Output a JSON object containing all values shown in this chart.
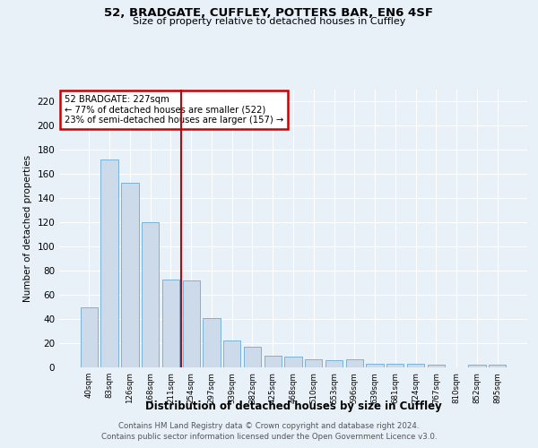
{
  "title1": "52, BRADGATE, CUFFLEY, POTTERS BAR, EN6 4SF",
  "title2": "Size of property relative to detached houses in Cuffley",
  "xlabel": "Distribution of detached houses by size in Cuffley",
  "ylabel": "Number of detached properties",
  "footer1": "Contains HM Land Registry data © Crown copyright and database right 2024.",
  "footer2": "Contains public sector information licensed under the Open Government Licence v3.0.",
  "annotation_line1": "52 BRADGATE: 227sqm",
  "annotation_line2": "← 77% of detached houses are smaller (522)",
  "annotation_line3": "23% of semi-detached houses are larger (157) →",
  "bar_color": "#ccdaea",
  "bar_edge_color": "#6aaad4",
  "vline_color": "#cc0000",
  "vline_index": 4.5,
  "categories": [
    "40sqm",
    "83sqm",
    "126sqm",
    "168sqm",
    "211sqm",
    "254sqm",
    "297sqm",
    "339sqm",
    "382sqm",
    "425sqm",
    "468sqm",
    "510sqm",
    "553sqm",
    "596sqm",
    "639sqm",
    "681sqm",
    "724sqm",
    "767sqm",
    "810sqm",
    "852sqm",
    "895sqm"
  ],
  "values": [
    50,
    172,
    153,
    120,
    73,
    72,
    41,
    22,
    17,
    10,
    9,
    7,
    6,
    7,
    3,
    3,
    3,
    2,
    0,
    2,
    2
  ],
  "ylim": [
    0,
    230
  ],
  "yticks": [
    0,
    20,
    40,
    60,
    80,
    100,
    120,
    140,
    160,
    180,
    200,
    220
  ],
  "background_color": "#e8f0f8",
  "plot_bg_color": "#e8f0f8",
  "grid_color": "#ffffff",
  "box_edge_color": "#cc0000",
  "box_face_color": "#ffffff"
}
